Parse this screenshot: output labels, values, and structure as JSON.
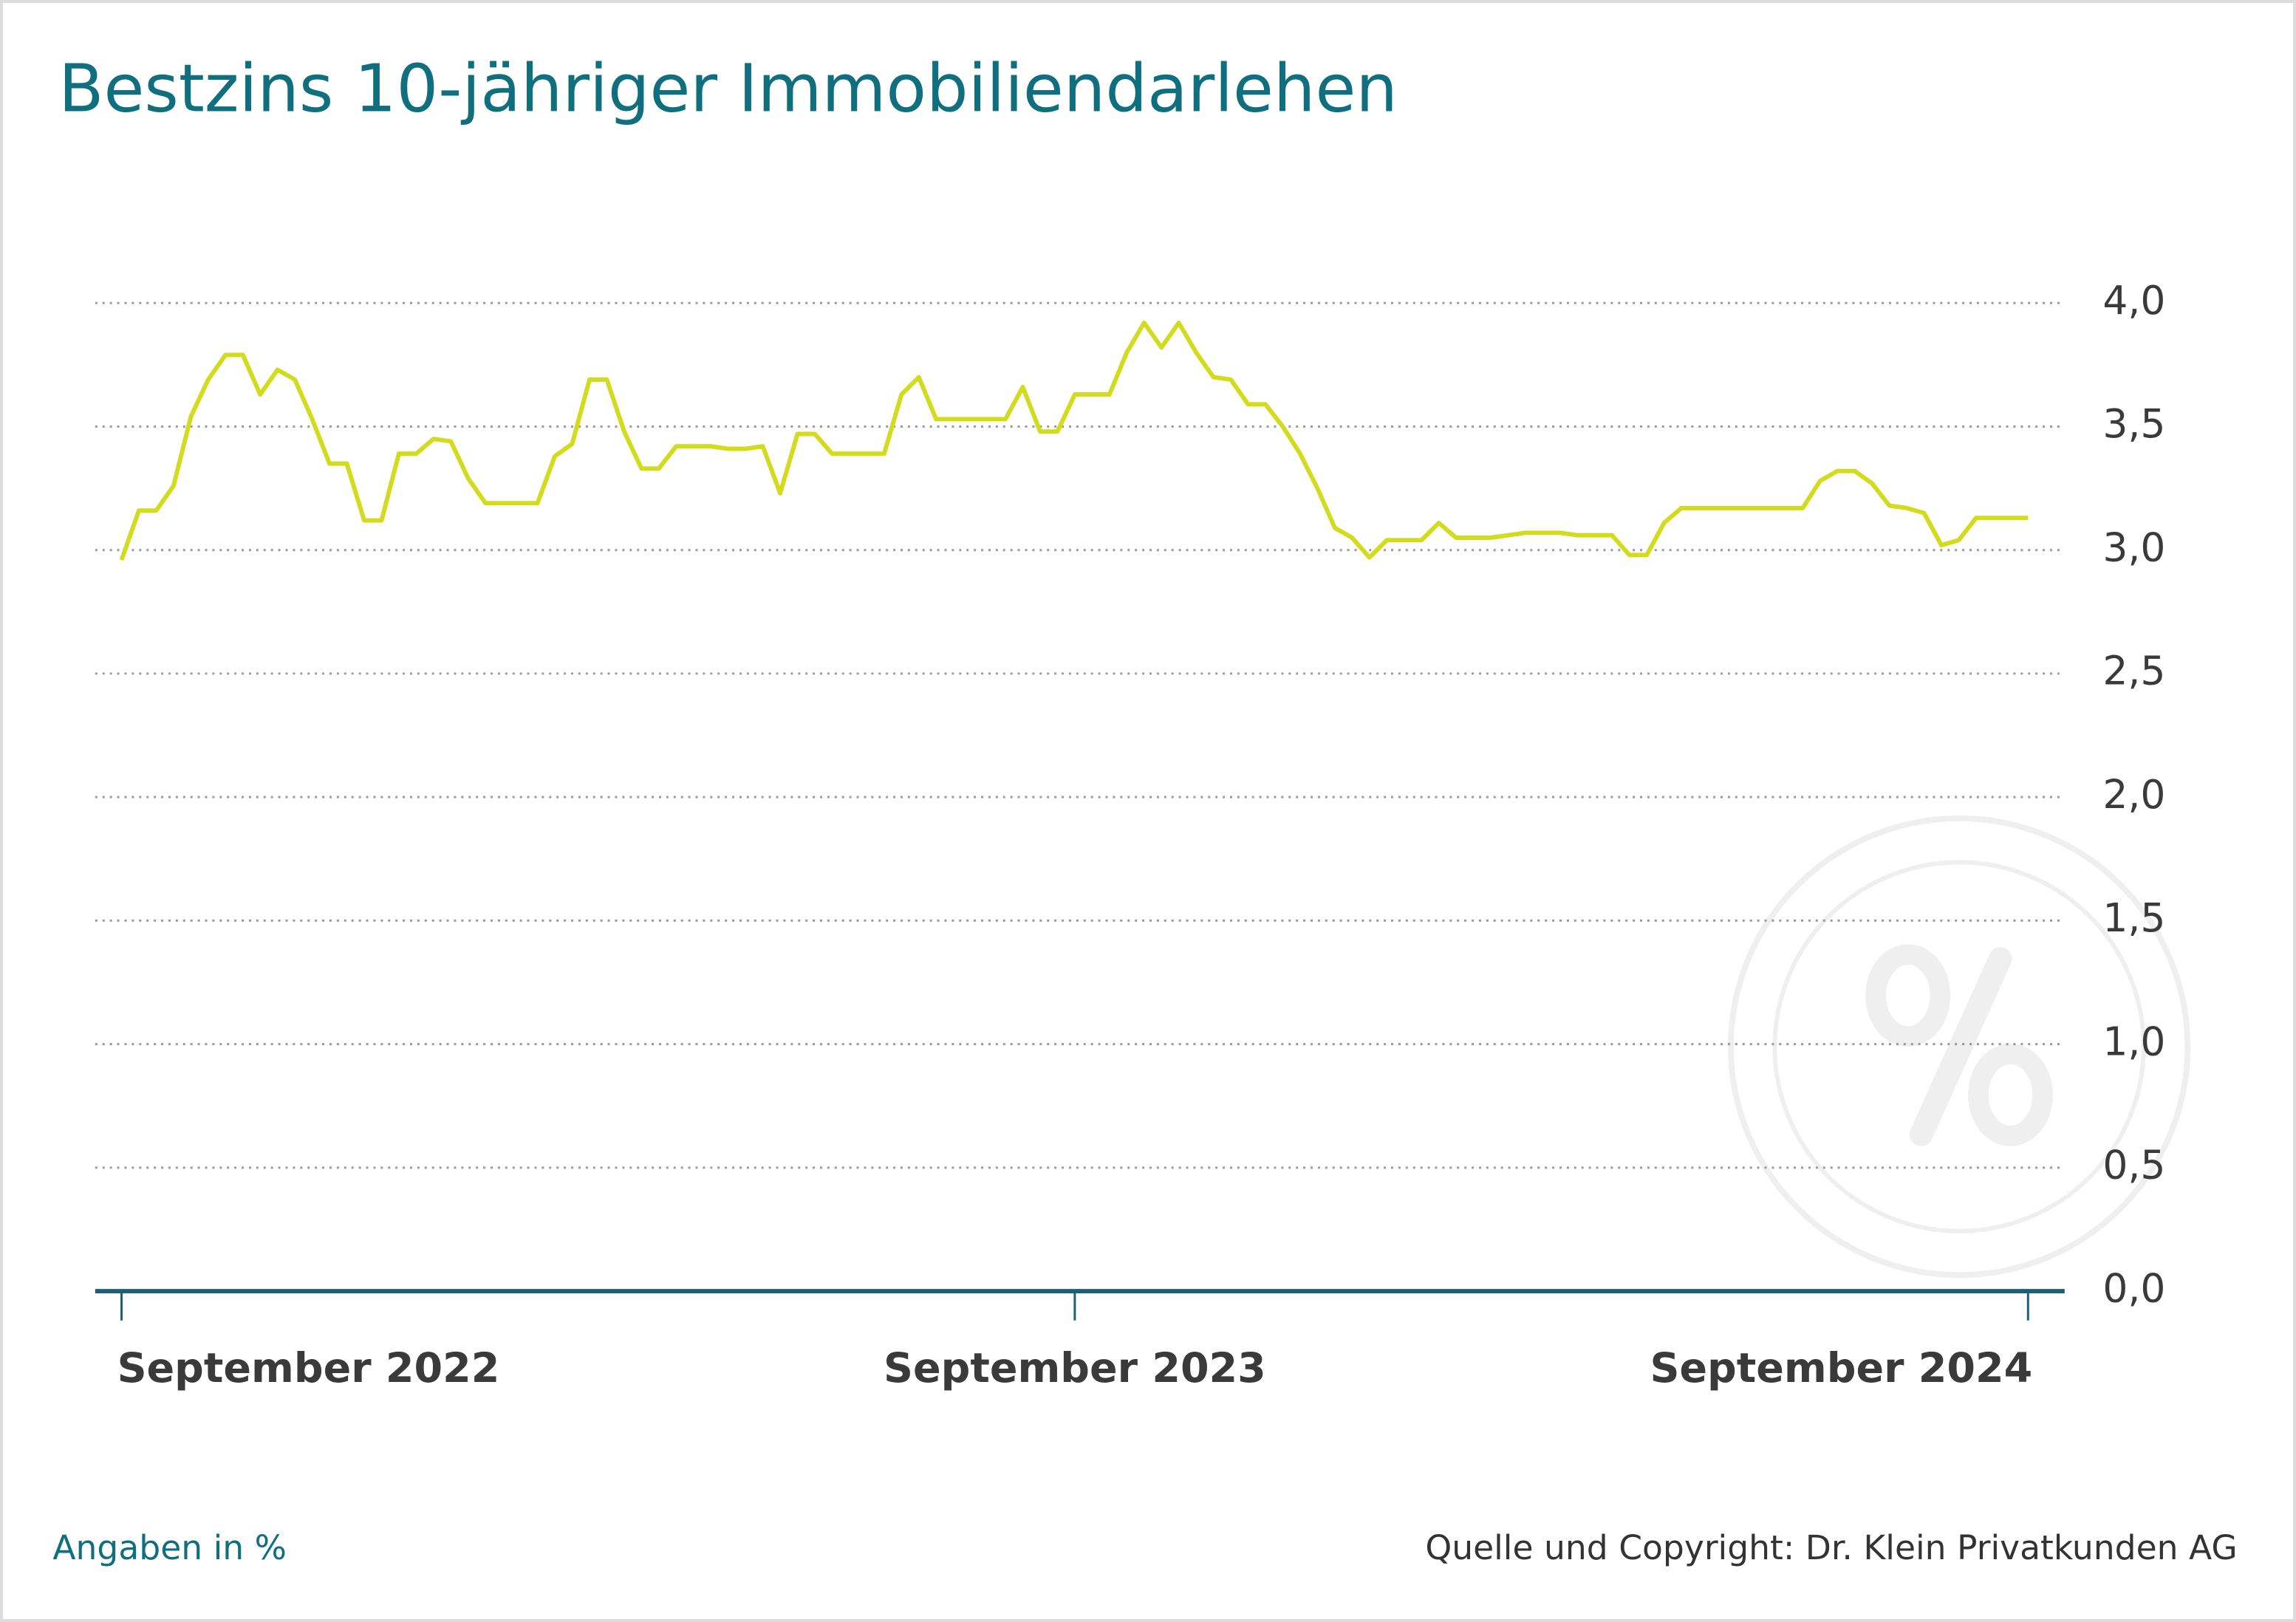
{
  "chart_data": {
    "type": "line",
    "title": "Bestzins 10-jähriger Immobiliendarlehen",
    "note": "Angaben in %",
    "source": "Quelle und Copyright: Dr. Klein Privatkunden AG",
    "categories": [
      "September 2022",
      null,
      null,
      null,
      null,
      null,
      null,
      null,
      null,
      null,
      null,
      null,
      null,
      null,
      null,
      null,
      null,
      null,
      null,
      null,
      null,
      null,
      null,
      null,
      null,
      null,
      null,
      null,
      null,
      null,
      null,
      null,
      null,
      null,
      null,
      null,
      null,
      null,
      null,
      null,
      null,
      null,
      null,
      null,
      null,
      null,
      null,
      null,
      null,
      null,
      null,
      null,
      null,
      null,
      null,
      "September 2023",
      null,
      null,
      null,
      null,
      null,
      null,
      null,
      null,
      null,
      null,
      null,
      null,
      null,
      null,
      null,
      null,
      null,
      null,
      null,
      null,
      null,
      null,
      null,
      null,
      null,
      null,
      null,
      null,
      null,
      null,
      null,
      null,
      null,
      null,
      null,
      null,
      null,
      null,
      null,
      null,
      null,
      null,
      null,
      null,
      null,
      null,
      null,
      null,
      null,
      null,
      null,
      null,
      null,
      null,
      "September 2024"
    ],
    "series": [
      {
        "name": "Bestzins",
        "color": "#d2db1c",
        "values": [
          2.96,
          3.16,
          3.16,
          3.26,
          3.54,
          3.69,
          3.79,
          3.79,
          3.63,
          3.73,
          3.69,
          3.53,
          3.35,
          3.35,
          3.12,
          3.12,
          3.39,
          3.39,
          3.45,
          3.44,
          3.29,
          3.19,
          3.19,
          3.19,
          3.19,
          3.38,
          3.43,
          3.69,
          3.69,
          3.48,
          3.33,
          3.33,
          3.42,
          3.42,
          3.42,
          3.41,
          3.41,
          3.42,
          3.23,
          3.47,
          3.47,
          3.39,
          3.39,
          3.39,
          3.39,
          3.63,
          3.7,
          3.53,
          3.53,
          3.53,
          3.53,
          3.53,
          3.66,
          3.48,
          3.48,
          3.63,
          3.63,
          3.63,
          3.8,
          3.92,
          3.82,
          3.92,
          3.8,
          3.7,
          3.69,
          3.59,
          3.59,
          3.5,
          3.39,
          3.25,
          3.09,
          3.05,
          2.97,
          3.04,
          3.04,
          3.04,
          3.11,
          3.05,
          3.05,
          3.05,
          3.06,
          3.07,
          3.07,
          3.07,
          3.06,
          3.06,
          3.06,
          2.98,
          2.98,
          3.11,
          3.17,
          3.17,
          3.17,
          3.17,
          3.17,
          3.17,
          3.17,
          3.17,
          3.28,
          3.32,
          3.32,
          3.27,
          3.18,
          3.17,
          3.15,
          3.02,
          3.04,
          3.13,
          3.13,
          3.13,
          3.13
        ]
      }
    ],
    "ylim": [
      0,
      4
    ],
    "yticks": [
      {
        "value": 0,
        "label": "0,0"
      },
      {
        "value": 0.5,
        "label": "0,5"
      },
      {
        "value": 1,
        "label": "1,0"
      },
      {
        "value": 1.5,
        "label": "1,5"
      },
      {
        "value": 2,
        "label": "2,0"
      },
      {
        "value": 2.5,
        "label": "2,5"
      },
      {
        "value": 3,
        "label": "3,0"
      },
      {
        "value": 3.5,
        "label": "3,5"
      },
      {
        "value": 4,
        "label": "4,0"
      }
    ],
    "grid": true,
    "axis_color": "#1a5f7a",
    "title_color": "#0f6f7f"
  }
}
